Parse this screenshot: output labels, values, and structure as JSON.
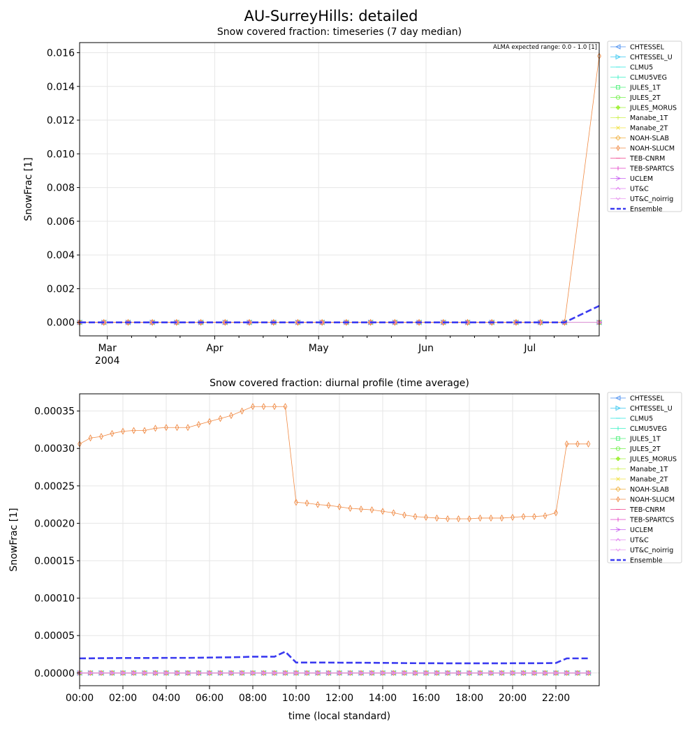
{
  "figure": {
    "title": "AU-SurreyHills: detailed"
  },
  "legend_entries": [
    {
      "name": "CHTESSEL",
      "color": "#4a8ff0",
      "marker": "tri-left"
    },
    {
      "name": "CHTESSEL_U",
      "color": "#37c7f0",
      "marker": "tri-right"
    },
    {
      "name": "CLMU5",
      "color": "#2ee6e0",
      "marker": "hline"
    },
    {
      "name": "CLMU5VEG",
      "color": "#36f0c4",
      "marker": "vline"
    },
    {
      "name": "JULES_1T",
      "color": "#4ef07a",
      "marker": "square"
    },
    {
      "name": "JULES_2T",
      "color": "#72f04a",
      "marker": "circle"
    },
    {
      "name": "JULES_MORUS",
      "color": "#a2f03a",
      "marker": "plus-filled"
    },
    {
      "name": "Manabe_1T",
      "color": "#ccf04a",
      "marker": "plus"
    },
    {
      "name": "Manabe_2T",
      "color": "#f0e040",
      "marker": "x"
    },
    {
      "name": "NOAH-SLAB",
      "color": "#f0b040",
      "marker": "diamond"
    },
    {
      "name": "NOAH-SLUCM",
      "color": "#f08a44",
      "marker": "thin-diamond"
    },
    {
      "name": "TEB-CNRM",
      "color": "#f0428c",
      "marker": "hline"
    },
    {
      "name": "TEB-SPARTCS",
      "color": "#e040c8",
      "marker": "vline"
    },
    {
      "name": "UCLEM",
      "color": "#c860f0",
      "marker": "arrow-right"
    },
    {
      "name": "UT&C",
      "color": "#e080f0",
      "marker": "caret-up"
    },
    {
      "name": "UT&C_noirrig",
      "color": "#e89cf0",
      "marker": "caret-down"
    },
    {
      "name": "Ensemble",
      "color": "#3a3af0",
      "marker": "dash"
    }
  ],
  "chart_data": [
    {
      "type": "line",
      "title": "Snow covered fraction: timeseries (7 day median)",
      "xlabel": "",
      "ylabel": "SnowFrac [1]",
      "annotation": "ALMA expected range: 0.0 - 1.0 [1]",
      "x_axis": "dates",
      "xlim": [
        "2004-02-22",
        "2004-07-21"
      ],
      "ylim": [
        -0.0008,
        0.0166
      ],
      "x_ticks": [
        {
          "date": "2004-03-01",
          "label": "Mar",
          "sublabel": "2004"
        },
        {
          "date": "2004-04-01",
          "label": "Apr",
          "sublabel": ""
        },
        {
          "date": "2004-05-01",
          "label": "May",
          "sublabel": ""
        },
        {
          "date": "2004-06-01",
          "label": "Jun",
          "sublabel": ""
        },
        {
          "date": "2004-07-01",
          "label": "Jul",
          "sublabel": ""
        }
      ],
      "x_minor_ticks": [
        "2004-03-08",
        "2004-03-15",
        "2004-03-22",
        "2004-04-08",
        "2004-04-15",
        "2004-04-22",
        "2004-05-08",
        "2004-05-15",
        "2004-05-22",
        "2004-06-08",
        "2004-06-15",
        "2004-06-22",
        "2004-07-08",
        "2004-07-15"
      ],
      "y_ticks": [
        {
          "value": 0.0,
          "label": "0.000"
        },
        {
          "value": 0.002,
          "label": "0.002"
        },
        {
          "value": 0.004,
          "label": "0.004"
        },
        {
          "value": 0.006,
          "label": "0.006"
        },
        {
          "value": 0.008,
          "label": "0.008"
        },
        {
          "value": 0.01,
          "label": "0.010"
        },
        {
          "value": 0.012,
          "label": "0.012"
        },
        {
          "value": 0.014,
          "label": "0.014"
        },
        {
          "value": 0.016,
          "label": "0.016"
        }
      ],
      "grid": true,
      "legend_position": "outside-right",
      "x": [
        "2004-02-22",
        "2004-02-29",
        "2004-03-07",
        "2004-03-14",
        "2004-03-21",
        "2004-03-28",
        "2004-04-04",
        "2004-04-11",
        "2004-04-18",
        "2004-04-25",
        "2004-05-02",
        "2004-05-09",
        "2004-05-16",
        "2004-05-23",
        "2004-05-30",
        "2004-06-06",
        "2004-06-13",
        "2004-06-20",
        "2004-06-27",
        "2004-07-04",
        "2004-07-11",
        "2004-07-21"
      ],
      "constant_zero_series": [
        "CHTESSEL",
        "CHTESSEL_U",
        "CLMU5",
        "CLMU5VEG",
        "JULES_1T",
        "JULES_2T",
        "JULES_MORUS",
        "Manabe_1T",
        "Manabe_2T",
        "NOAH-SLAB",
        "TEB-CNRM",
        "TEB-SPARTCS",
        "UCLEM",
        "UT&C",
        "UT&C_noirrig"
      ],
      "series": [
        {
          "name": "NOAH-SLUCM",
          "values": [
            0,
            0,
            0,
            0,
            0,
            0,
            0,
            0,
            0,
            0,
            0,
            0,
            0,
            0,
            0,
            0,
            0,
            0,
            0,
            0,
            0,
            0.0158
          ]
        },
        {
          "name": "Ensemble",
          "values": [
            0,
            0,
            0,
            0,
            0,
            0,
            0,
            0,
            0,
            0,
            0,
            0,
            0,
            0,
            0,
            0,
            0,
            0,
            0,
            0,
            0,
            0.00098
          ]
        }
      ]
    },
    {
      "type": "line",
      "title": "Snow covered fraction: diurnal profile (time average)",
      "xlabel": "time (local standard)",
      "ylabel": "SnowFrac [1]",
      "xlim": [
        0,
        24
      ],
      "ylim": [
        -1.7e-05,
        0.000373
      ],
      "x_ticks": [
        {
          "value": 0,
          "label": "00:00"
        },
        {
          "value": 2,
          "label": "02:00"
        },
        {
          "value": 4,
          "label": "04:00"
        },
        {
          "value": 6,
          "label": "06:00"
        },
        {
          "value": 8,
          "label": "08:00"
        },
        {
          "value": 10,
          "label": "10:00"
        },
        {
          "value": 12,
          "label": "12:00"
        },
        {
          "value": 14,
          "label": "14:00"
        },
        {
          "value": 16,
          "label": "16:00"
        },
        {
          "value": 18,
          "label": "18:00"
        },
        {
          "value": 20,
          "label": "20:00"
        },
        {
          "value": 22,
          "label": "22:00"
        }
      ],
      "y_ticks": [
        {
          "value": 0.0,
          "label": "0.00000"
        },
        {
          "value": 5e-05,
          "label": "0.00005"
        },
        {
          "value": 0.0001,
          "label": "0.00010"
        },
        {
          "value": 0.00015,
          "label": "0.00015"
        },
        {
          "value": 0.0002,
          "label": "0.00020"
        },
        {
          "value": 0.00025,
          "label": "0.00025"
        },
        {
          "value": 0.0003,
          "label": "0.00030"
        },
        {
          "value": 0.00035,
          "label": "0.00035"
        }
      ],
      "grid": true,
      "legend_position": "outside-right",
      "x": [
        0,
        0.5,
        1,
        1.5,
        2,
        2.5,
        3,
        3.5,
        4,
        4.5,
        5,
        5.5,
        6,
        6.5,
        7,
        7.5,
        8,
        8.5,
        9,
        9.5,
        10,
        10.5,
        11,
        11.5,
        12,
        12.5,
        13,
        13.5,
        14,
        14.5,
        15,
        15.5,
        16,
        16.5,
        17,
        17.5,
        18,
        18.5,
        19,
        19.5,
        20,
        20.5,
        21,
        21.5,
        22,
        22.5,
        23,
        23.5
      ],
      "constant_zero_series": [
        "CHTESSEL",
        "CHTESSEL_U",
        "CLMU5",
        "CLMU5VEG",
        "JULES_1T",
        "JULES_2T",
        "JULES_MORUS",
        "Manabe_1T",
        "Manabe_2T",
        "NOAH-SLAB",
        "TEB-CNRM",
        "TEB-SPARTCS",
        "UCLEM",
        "UT&C",
        "UT&C_noirrig"
      ],
      "series": [
        {
          "name": "NOAH-SLUCM",
          "values": [
            0.000306,
            0.000314,
            0.000316,
            0.00032,
            0.000323,
            0.000324,
            0.000324,
            0.000327,
            0.000328,
            0.000328,
            0.000328,
            0.000332,
            0.000336,
            0.00034,
            0.000344,
            0.00035,
            0.000356,
            0.000356,
            0.000356,
            0.000356,
            0.000228,
            0.000227,
            0.000225,
            0.000224,
            0.000222,
            0.00022,
            0.000219,
            0.000218,
            0.000216,
            0.000214,
            0.000211,
            0.000209,
            0.000208,
            0.000207,
            0.000206,
            0.000206,
            0.000206,
            0.000207,
            0.000207,
            0.000207,
            0.000208,
            0.000209,
            0.000209,
            0.00021,
            0.000214,
            0.000306,
            0.000306,
            0.000306
          ]
        },
        {
          "name": "Ensemble",
          "values": [
            1.95e-05,
            1.96e-05,
            1.98e-05,
            1.99e-05,
            2e-05,
            2e-05,
            2e-05,
            2.01e-05,
            2.02e-05,
            2.02e-05,
            2.02e-05,
            2.04e-05,
            2.06e-05,
            2.08e-05,
            2.1e-05,
            2.13e-05,
            2.18e-05,
            2.18e-05,
            2.18e-05,
            2.85e-05,
            1.4e-05,
            1.4e-05,
            1.4e-05,
            1.39e-05,
            1.38e-05,
            1.37e-05,
            1.37e-05,
            1.36e-05,
            1.35e-05,
            1.34e-05,
            1.32e-05,
            1.31e-05,
            1.3e-05,
            1.3e-05,
            1.29e-05,
            1.29e-05,
            1.29e-05,
            1.29e-05,
            1.29e-05,
            1.29e-05,
            1.3e-05,
            1.3e-05,
            1.3e-05,
            1.31e-05,
            1.34e-05,
            1.95e-05,
            1.95e-05,
            1.95e-05
          ]
        }
      ]
    }
  ]
}
